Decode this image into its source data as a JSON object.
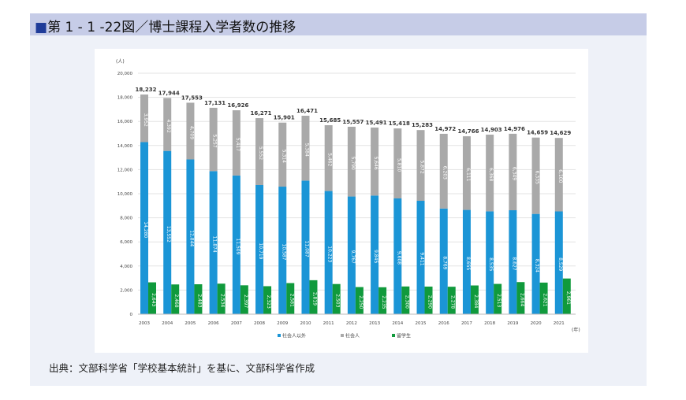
{
  "title": {
    "marker": "■",
    "text": "第 1 - 1 -22図／博士課程入学者数の推移"
  },
  "source": "出典：文部科学省「学校基本統計」を基に、文部科学省作成",
  "chart_data": {
    "type": "bar",
    "stacked_series": [
      "社会人以外",
      "社会人"
    ],
    "yunit": "(人)",
    "xunit": "(年)",
    "ylim": [
      0,
      20000
    ],
    "yticks": [
      "0",
      "2,000",
      "4,000",
      "6,000",
      "8,000",
      "10,000",
      "12,000",
      "14,000",
      "16,000",
      "18,000",
      "20,000"
    ],
    "grid": true,
    "legend_position": "bottom",
    "categories": [
      "2003",
      "2004",
      "2005",
      "2006",
      "2007",
      "2008",
      "2009",
      "2010",
      "2011",
      "2012",
      "2013",
      "2014",
      "2015",
      "2016",
      "2017",
      "2018",
      "2019",
      "2020",
      "2021"
    ],
    "series": [
      {
        "name": "社会人以外",
        "color": "#1b95d6",
        "values": [
          14280,
          13552,
          12844,
          11874,
          11509,
          10719,
          10587,
          11087,
          10223,
          9767,
          9845,
          9608,
          9411,
          8769,
          8655,
          8535,
          8627,
          8324,
          8529
        ],
        "labels": [
          "14,280",
          "13,552",
          "12,844",
          "11,874",
          "11,509",
          "10,719",
          "10,587",
          "11,087",
          "10,223",
          "9,767",
          "9,845",
          "9,608",
          "9,411",
          "8,769",
          "8,655",
          "8,535",
          "8,627",
          "8,324",
          "8,529"
        ]
      },
      {
        "name": "社会人",
        "color": "#a9a9a9",
        "values": [
          3952,
          4392,
          4709,
          5257,
          5417,
          5552,
          5314,
          5384,
          5462,
          5790,
          5646,
          5810,
          5872,
          6203,
          6111,
          6368,
          6349,
          6335,
          6100
        ],
        "labels": [
          "3,952",
          "4,392",
          "4,709",
          "5,257",
          "5,417",
          "5,552",
          "5,314",
          "5,384",
          "5,462",
          "5,790",
          "5,646",
          "5,810",
          "5,872",
          "6,203",
          "6,111",
          "6,368",
          "6,349",
          "6,335",
          "6,100"
        ]
      },
      {
        "name": "留学生",
        "color": "#109a3c",
        "values": [
          2643,
          2468,
          2483,
          2534,
          2397,
          2323,
          2581,
          2819,
          2503,
          2250,
          2235,
          2300,
          2290,
          2278,
          2384,
          2513,
          2664,
          2621,
          2961
        ],
        "labels": [
          "2,643",
          "2,468",
          "2,483",
          "2,534",
          "2,397",
          "2,323",
          "2,581",
          "2,819",
          "2,503",
          "2,250",
          "2,235",
          "2,300",
          "2,290",
          "2,278",
          "2,384",
          "2,513",
          "2,664",
          "2,621",
          "2,961"
        ]
      }
    ],
    "totals": [
      "18,232",
      "17,944",
      "17,553",
      "17,131",
      "16,926",
      "16,271",
      "15,901",
      "16,471",
      "15,685",
      "15,557",
      "15,491",
      "15,418",
      "15,283",
      "14,972",
      "14,766",
      "14,903",
      "14,976",
      "14,659",
      "14,629"
    ]
  }
}
